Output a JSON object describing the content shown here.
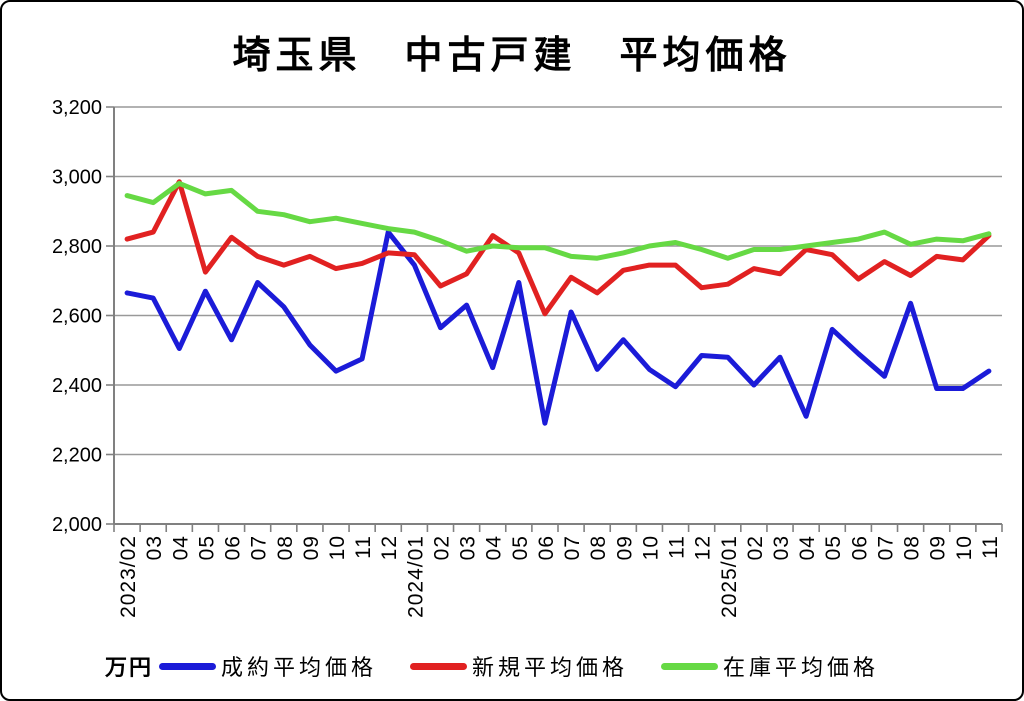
{
  "title": "埼玉県　中古戸建　平均価格",
  "unit_label": "万円",
  "y_axis": {
    "ticks": [
      "3,200",
      "3,000",
      "2,800",
      "2,600",
      "2,400",
      "2,200",
      "2,000"
    ]
  },
  "colors": {
    "grid": "#999999",
    "axis": "#808080",
    "text": "#000000",
    "background": "#ffffff",
    "frame_border": "#000000"
  },
  "chart_data": {
    "type": "line",
    "title": "埼玉県　中古戸建　平均価格",
    "ylabel": "万円",
    "ylim": [
      2000,
      3200
    ],
    "y_tick_step": 200,
    "grid": true,
    "legend_position": "bottom",
    "categories": [
      "2023/02",
      "03",
      "04",
      "05",
      "06",
      "07",
      "08",
      "09",
      "10",
      "11",
      "12",
      "2024/01",
      "02",
      "03",
      "04",
      "05",
      "06",
      "07",
      "08",
      "09",
      "10",
      "11",
      "12",
      "2025/01",
      "02",
      "03",
      "04",
      "05",
      "06",
      "07",
      "08",
      "09",
      "10",
      "11"
    ],
    "series": [
      {
        "name": "成約平均価格",
        "key": "contract-avg-price",
        "color": "#1b1bd8",
        "values": [
          2665,
          2650,
          2505,
          2670,
          2530,
          2695,
          2625,
          2515,
          2440,
          2475,
          2840,
          2745,
          2565,
          2630,
          2450,
          2695,
          2290,
          2610,
          2445,
          2530,
          2445,
          2395,
          2485,
          2480,
          2400,
          2480,
          2310,
          2560,
          2490,
          2425,
          2635,
          2390,
          2390,
          2440
        ]
      },
      {
        "name": "新規平均価格",
        "key": "new-avg-price",
        "color": "#e12121",
        "values": [
          2820,
          2840,
          2985,
          2725,
          2825,
          2770,
          2745,
          2770,
          2735,
          2750,
          2780,
          2775,
          2685,
          2720,
          2830,
          2780,
          2605,
          2710,
          2665,
          2730,
          2745,
          2745,
          2680,
          2690,
          2735,
          2720,
          2790,
          2775,
          2705,
          2755,
          2715,
          2770,
          2760,
          2830
        ]
      },
      {
        "name": "在庫平均価格",
        "key": "stock-avg-price",
        "color": "#66d944",
        "values": [
          2945,
          2925,
          2980,
          2950,
          2960,
          2900,
          2890,
          2870,
          2880,
          2865,
          2850,
          2840,
          2815,
          2785,
          2800,
          2795,
          2795,
          2770,
          2765,
          2780,
          2800,
          2810,
          2790,
          2765,
          2790,
          2790,
          2800,
          2810,
          2820,
          2840,
          2805,
          2820,
          2815,
          2835
        ]
      }
    ]
  }
}
